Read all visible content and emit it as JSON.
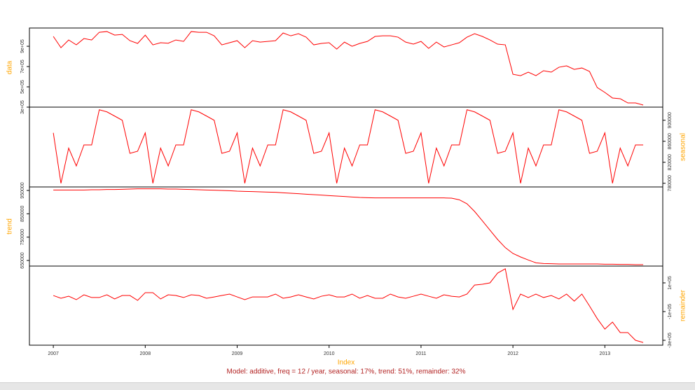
{
  "chart_data": {
    "type": "line",
    "xlabel": "Index",
    "caption": "Model: additive, freq = 12 / year, seasonal: 17%, trend: 51%, remainder: 32%",
    "line_color": "#ff0000",
    "label_color": "#ffa500",
    "caption_color": "#b22222",
    "xlim": [
      2006.74,
      2013.63
    ],
    "xticks": [
      2007,
      2008,
      2009,
      2010,
      2011,
      2012,
      2013
    ],
    "x": [
      2007,
      2007.083,
      2007.167,
      2007.25,
      2007.333,
      2007.417,
      2007.5,
      2007.583,
      2007.667,
      2007.75,
      2007.833,
      2007.917,
      2008,
      2008.083,
      2008.167,
      2008.25,
      2008.333,
      2008.417,
      2008.5,
      2008.583,
      2008.667,
      2008.75,
      2008.833,
      2008.917,
      2009,
      2009.083,
      2009.167,
      2009.25,
      2009.333,
      2009.417,
      2009.5,
      2009.583,
      2009.667,
      2009.75,
      2009.833,
      2009.917,
      2010,
      2010.083,
      2010.167,
      2010.25,
      2010.333,
      2010.417,
      2010.5,
      2010.583,
      2010.667,
      2010.75,
      2010.833,
      2010.917,
      2011,
      2011.083,
      2011.167,
      2011.25,
      2011.333,
      2011.417,
      2011.5,
      2011.583,
      2011.667,
      2011.75,
      2011.833,
      2011.917,
      2012,
      2012.083,
      2012.167,
      2012.25,
      2012.333,
      2012.417,
      2012.5,
      2012.583,
      2012.667,
      2012.75,
      2012.833,
      2012.917,
      2013,
      2013.083,
      2013.167,
      2013.25,
      2013.333,
      2013.417
    ],
    "panels": [
      {
        "ylabel": "data",
        "axis_side": "left",
        "ylim": [
          300000,
          1080000
        ],
        "yticks": [
          {
            "value": 300000,
            "label": "3e+05"
          },
          {
            "value": 500000,
            "label": "5e+05"
          },
          {
            "value": 700000,
            "label": "7e+05"
          },
          {
            "value": 900000,
            "label": "9e+05"
          }
        ],
        "values": [
          997000,
          886000,
          962000,
          914000,
          976000,
          962000,
          1038000,
          1045000,
          1010000,
          1017000,
          955000,
          928000,
          1010000,
          914000,
          935000,
          930000,
          962000,
          948000,
          1045000,
          1038000,
          1038000,
          1003000,
          914000,
          935000,
          955000,
          886000,
          955000,
          941000,
          948000,
          955000,
          1031000,
          1003000,
          1024000,
          990000,
          914000,
          928000,
          935000,
          872000,
          941000,
          900000,
          928000,
          948000,
          997000,
          1003000,
          1003000,
          990000,
          941000,
          921000,
          948000,
          879000,
          941000,
          893000,
          914000,
          935000,
          990000,
          1024000,
          997000,
          962000,
          921000,
          914000,
          624000,
          610000,
          645000,
          610000,
          659000,
          645000,
          693000,
          707000,
          672000,
          686000,
          652000,
          493000,
          445000,
          390000,
          383000,
          341000,
          341000,
          321000
        ]
      },
      {
        "ylabel": "seasonal",
        "axis_side": "right",
        "ylim": [
          773000,
          925000
        ],
        "yticks": [
          780000,
          820000,
          860000,
          900000
        ],
        "values": [
          876000,
          780000,
          847000,
          813000,
          853000,
          853000,
          920000,
          916000,
          908000,
          900000,
          837000,
          841000,
          876000,
          780000,
          847000,
          813000,
          853000,
          853000,
          920000,
          916000,
          908000,
          900000,
          837000,
          841000,
          876000,
          780000,
          847000,
          813000,
          853000,
          853000,
          920000,
          916000,
          908000,
          900000,
          837000,
          841000,
          876000,
          780000,
          847000,
          813000,
          853000,
          853000,
          920000,
          916000,
          908000,
          900000,
          837000,
          841000,
          876000,
          780000,
          847000,
          813000,
          853000,
          853000,
          920000,
          916000,
          908000,
          900000,
          837000,
          841000,
          876000,
          780000,
          847000,
          813000,
          853000,
          853000,
          920000,
          916000,
          908000,
          900000,
          837000,
          841000,
          876000,
          780000,
          847000,
          813000,
          853000,
          853000
        ]
      },
      {
        "ylabel": "trend",
        "axis_side": "left",
        "ylim": [
          626000,
          965000
        ],
        "yticks": [
          650000,
          750000,
          850000,
          950000
        ],
        "values": [
          952000,
          952000,
          952000,
          952000,
          952000,
          953000,
          953000,
          954000,
          954000,
          955000,
          956000,
          957000,
          957000,
          957000,
          957000,
          956000,
          956000,
          955000,
          954000,
          953000,
          952000,
          951000,
          950000,
          949000,
          947000,
          946000,
          945000,
          944000,
          943000,
          942000,
          940000,
          938000,
          936000,
          934000,
          932000,
          930000,
          928000,
          926000,
          924000,
          922000,
          920000,
          919000,
          918000,
          918000,
          918000,
          918000,
          918000,
          918000,
          918000,
          918000,
          918000,
          918000,
          917000,
          910000,
          893000,
          860000,
          820000,
          780000,
          740000,
          705000,
          680000,
          665000,
          652000,
          640000,
          637000,
          636000,
          635000,
          635000,
          635000,
          635000,
          635000,
          635000,
          634000,
          634000,
          633000,
          633000,
          632000,
          632000
        ]
      },
      {
        "ylabel": "remainder",
        "axis_side": "right",
        "ylim": [
          -334000,
          217000
        ],
        "yticks": [
          {
            "value": -300000,
            "label": "-3e+05"
          },
          {
            "value": -100000,
            "label": "-1e+05"
          },
          {
            "value": 100000,
            "label": "1e+05"
          }
        ],
        "values": [
          12000,
          -7000,
          7000,
          -17000,
          17000,
          -2000,
          -2000,
          17000,
          -12000,
          12000,
          12000,
          -22000,
          32000,
          32000,
          -12000,
          17000,
          12000,
          -2000,
          17000,
          12000,
          -7000,
          2000,
          12000,
          22000,
          2000,
          -17000,
          2000,
          2000,
          2000,
          22000,
          -7000,
          2000,
          17000,
          2000,
          -12000,
          7000,
          17000,
          2000,
          2000,
          22000,
          -7000,
          12000,
          -7000,
          -7000,
          22000,
          2000,
          -7000,
          7000,
          22000,
          7000,
          -7000,
          17000,
          7000,
          2000,
          22000,
          85000,
          90000,
          100000,
          168000,
          198000,
          -85000,
          22000,
          -2000,
          22000,
          -2000,
          12000,
          -12000,
          22000,
          -27000,
          22000,
          -61000,
          -149000,
          -222000,
          -173000,
          -246000,
          -246000,
          -300000,
          -315000
        ]
      }
    ]
  }
}
